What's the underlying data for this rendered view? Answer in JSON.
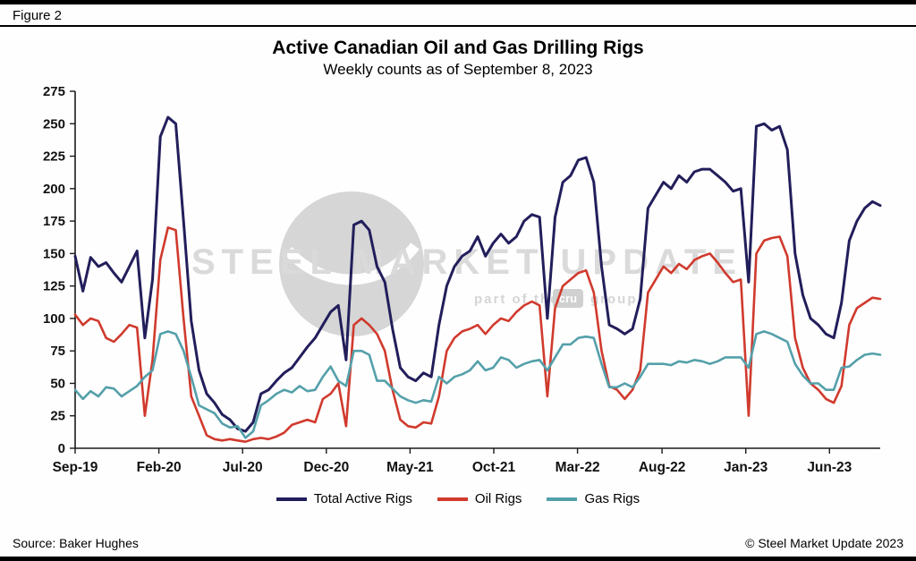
{
  "header": {
    "figure_label": "Figure 2"
  },
  "footer": {
    "source": "Source: Baker Hughes",
    "copyright": "© Steel Market Update 2023"
  },
  "watermark": {
    "line1": "STEEL MARKET UPDATE",
    "line2_prefix": "part of the",
    "badge": "cru",
    "line2_suffix": "group"
  },
  "chart_data": {
    "type": "line",
    "title": "Active Canadian Oil and Gas Drilling Rigs",
    "subtitle": "Weekly counts as of September 8, 2023",
    "xlabel": "",
    "ylabel": "",
    "ylim": [
      0,
      275
    ],
    "y_ticks": [
      0,
      25,
      50,
      75,
      100,
      125,
      150,
      175,
      200,
      225,
      250,
      275
    ],
    "grid": false,
    "legend_position": "bottom",
    "x_ticks": [
      {
        "label": "Sep-19",
        "pos": 0.0
      },
      {
        "label": "Feb-20",
        "pos": 0.104
      },
      {
        "label": "Jul-20",
        "pos": 0.208
      },
      {
        "label": "Dec-20",
        "pos": 0.312
      },
      {
        "label": "May-21",
        "pos": 0.416
      },
      {
        "label": "Oct-21",
        "pos": 0.52
      },
      {
        "label": "Mar-22",
        "pos": 0.624
      },
      {
        "label": "Aug-22",
        "pos": 0.729
      },
      {
        "label": "Jan-23",
        "pos": 0.833
      },
      {
        "label": "Jun-23",
        "pos": 0.937
      }
    ],
    "x_note": "biweekly samples from Sep-2019 through Sep-8-2023, evenly spaced",
    "series": [
      {
        "name": "Total Active Rigs",
        "color": "#221e5b",
        "width": 3,
        "values": [
          148,
          121,
          147,
          140,
          143,
          135,
          128,
          140,
          152,
          85,
          130,
          240,
          255,
          250,
          175,
          98,
          60,
          42,
          35,
          26,
          22,
          15,
          13,
          20,
          42,
          45,
          52,
          58,
          62,
          70,
          78,
          85,
          95,
          105,
          110,
          68,
          172,
          175,
          168,
          140,
          128,
          92,
          62,
          55,
          52,
          58,
          55,
          95,
          125,
          140,
          148,
          152,
          163,
          148,
          158,
          165,
          158,
          163,
          175,
          180,
          178,
          100,
          178,
          205,
          210,
          222,
          224,
          205,
          140,
          95,
          92,
          88,
          92,
          115,
          185,
          195,
          205,
          200,
          210,
          205,
          213,
          215,
          215,
          210,
          205,
          198,
          200,
          128,
          248,
          250,
          245,
          248,
          230,
          150,
          118,
          100,
          95,
          88,
          85,
          112,
          160,
          175,
          185,
          190,
          187
        ]
      },
      {
        "name": "Oil Rigs",
        "color": "#d03a2d",
        "width": 2.6,
        "values": [
          103,
          95,
          100,
          98,
          85,
          82,
          88,
          95,
          93,
          25,
          68,
          145,
          170,
          168,
          100,
          40,
          25,
          10,
          7,
          6,
          7,
          6,
          5,
          7,
          8,
          7,
          9,
          12,
          18,
          20,
          22,
          20,
          38,
          42,
          50,
          17,
          95,
          100,
          95,
          88,
          75,
          45,
          22,
          17,
          16,
          20,
          19,
          40,
          75,
          85,
          90,
          92,
          95,
          88,
          95,
          100,
          98,
          105,
          110,
          113,
          110,
          40,
          108,
          125,
          130,
          135,
          137,
          120,
          75,
          48,
          45,
          38,
          45,
          60,
          120,
          130,
          140,
          135,
          142,
          138,
          145,
          148,
          150,
          143,
          135,
          128,
          130,
          25,
          150,
          160,
          162,
          163,
          148,
          85,
          62,
          50,
          45,
          38,
          35,
          48,
          95,
          108,
          112,
          116,
          115
        ]
      },
      {
        "name": "Gas Rigs",
        "color": "#54a0aa",
        "width": 2.6,
        "values": [
          45,
          38,
          44,
          40,
          47,
          46,
          40,
          44,
          48,
          55,
          60,
          88,
          90,
          88,
          75,
          55,
          33,
          30,
          27,
          19,
          16,
          17,
          8,
          13,
          33,
          37,
          42,
          45,
          43,
          48,
          44,
          45,
          55,
          63,
          52,
          48,
          75,
          75,
          72,
          52,
          52,
          46,
          40,
          37,
          35,
          37,
          36,
          55,
          50,
          55,
          57,
          60,
          67,
          60,
          62,
          70,
          68,
          62,
          65,
          67,
          68,
          60,
          70,
          80,
          80,
          85,
          86,
          85,
          65,
          47,
          47,
          50,
          47,
          55,
          65,
          65,
          65,
          64,
          67,
          66,
          68,
          67,
          65,
          67,
          70,
          70,
          70,
          62,
          88,
          90,
          88,
          85,
          82,
          65,
          56,
          50,
          50,
          45,
          45,
          62,
          63,
          68,
          72,
          73,
          72
        ]
      }
    ]
  }
}
